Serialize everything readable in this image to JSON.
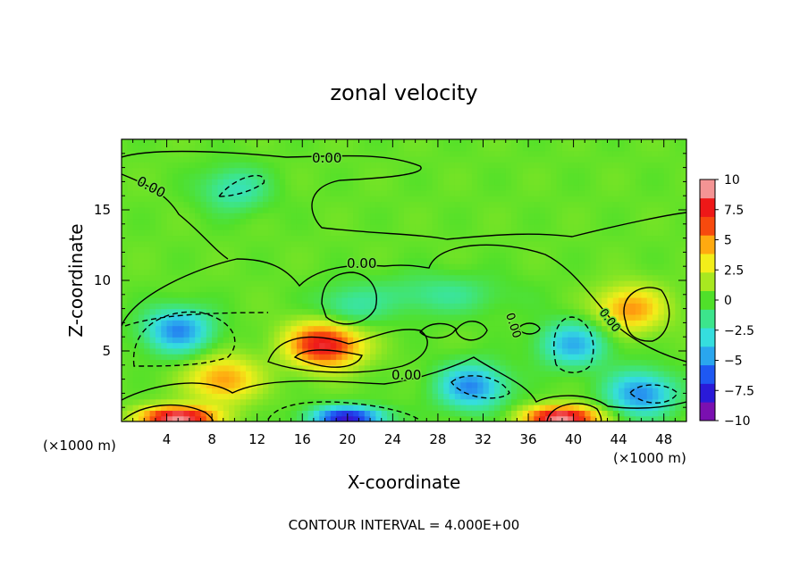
{
  "chart_data": {
    "type": "heatmap",
    "title": "zonal velocity",
    "xlabel": "X-coordinate",
    "ylabel": "Z-coordinate",
    "x_unit_note": "(×1000 m)",
    "x_unit_note_right": "(×1000 m)",
    "footer": "CONTOUR INTERVAL = 4.000E+00",
    "xlim": [
      0,
      50
    ],
    "ylim": [
      0,
      20
    ],
    "x_ticks": [
      "4",
      "8",
      "12",
      "16",
      "20",
      "24",
      "28",
      "32",
      "36",
      "40",
      "44",
      "48"
    ],
    "y_ticks": [
      "5",
      "10",
      "15"
    ],
    "contour_labels": [
      "0.00",
      "0.00",
      "0.00",
      "0.00",
      "0.00",
      "0.00"
    ],
    "colorbar": {
      "range": [
        -10,
        10
      ],
      "ticks": [
        "10",
        "7.5",
        "5",
        "2.5",
        "0",
        "−2.5",
        "−5",
        "−7.5",
        "−10"
      ],
      "colors": [
        "#7a10b0",
        "#2a1ad8",
        "#1e58f2",
        "#2aa6ee",
        "#35dede",
        "#3ce58c",
        "#50e02a",
        "#a8e820",
        "#f2ee1a",
        "#ffaa10",
        "#f74a0e",
        "#ee1818",
        "#f49494"
      ]
    },
    "velocity_field": [
      {
        "x": 0,
        "z": 0,
        "u": 0.5
      }
    ],
    "features": [
      {
        "name": "strong positive jet near x=18, z=5",
        "x": 18,
        "z": 5.5,
        "u": 8.5
      },
      {
        "name": "negative core near x=5, z=6",
        "x": 5,
        "z": 6.5,
        "u": -6
      },
      {
        "name": "negative core near x=40, z=5",
        "x": 40,
        "z": 5.5,
        "u": -5
      },
      {
        "name": "negative near x=31, z=2.5",
        "x": 31,
        "z": 2.5,
        "u": -6
      },
      {
        "name": "negative near x=46, z=2",
        "x": 46,
        "z": 2,
        "u": -6
      },
      {
        "name": "positive near x=45, z=8",
        "x": 45,
        "z": 8,
        "u": 5
      },
      {
        "name": "positive near x=9, z=3",
        "x": 9,
        "z": 3,
        "u": 5
      },
      {
        "name": "surface positive near x=5, z=0",
        "x": 5,
        "z": 0.3,
        "u": 10
      },
      {
        "name": "surface positive near x=39, z=0",
        "x": 39,
        "z": 0.3,
        "u": 10
      },
      {
        "name": "surface negative near x=20, z=0",
        "x": 20,
        "z": 0.3,
        "u": -9
      },
      {
        "name": "weak negative upper layer x=10, z=16",
        "x": 10,
        "z": 16.5,
        "u": -3
      },
      {
        "name": "weak negative x=20, z=8",
        "x": 20,
        "z": 8,
        "u": -2.5
      }
    ]
  }
}
